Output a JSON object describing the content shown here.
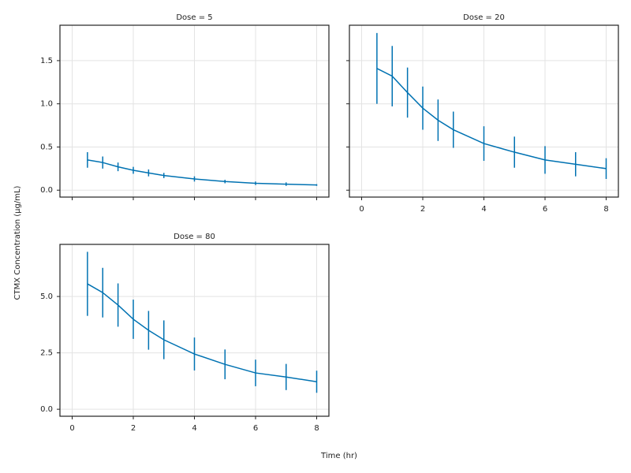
{
  "xlabel": "Time (hr)",
  "ylabel": "CTMX Concentration (μg/mL)",
  "chart_data": [
    {
      "type": "errorline",
      "title": "Dose = 5",
      "x": [
        0.5,
        1,
        1.5,
        2,
        2.5,
        3,
        4,
        5,
        6,
        7,
        8
      ],
      "values": [
        0.35,
        0.32,
        0.27,
        0.23,
        0.2,
        0.17,
        0.13,
        0.1,
        0.08,
        0.07,
        0.06
      ],
      "errors": [
        0.09,
        0.07,
        0.05,
        0.04,
        0.04,
        0.03,
        0.03,
        0.02,
        0.02,
        0.02,
        0.01
      ],
      "color": "#0072b2",
      "xlim": [
        -0.4,
        8.4
      ],
      "ylim": [
        -0.08,
        1.91
      ],
      "xticks": [
        0,
        2,
        4,
        6,
        8
      ],
      "xticklabels": false,
      "yticks": [
        {
          "value": 0,
          "label": "0.0"
        },
        {
          "value": 0.5,
          "label": "0.5"
        },
        {
          "value": 1,
          "label": "1.0"
        },
        {
          "value": 1.5,
          "label": "1.5"
        }
      ],
      "yticklabels": true,
      "grid": true
    },
    {
      "type": "errorline",
      "title": "Dose = 20",
      "x": [
        0.5,
        1,
        1.5,
        2,
        2.5,
        3,
        4,
        5,
        6,
        7,
        8
      ],
      "values": [
        1.41,
        1.32,
        1.13,
        0.95,
        0.81,
        0.7,
        0.54,
        0.44,
        0.35,
        0.3,
        0.25
      ],
      "errors": [
        0.41,
        0.35,
        0.29,
        0.25,
        0.24,
        0.21,
        0.2,
        0.18,
        0.16,
        0.14,
        0.12
      ],
      "color": "#0072b2",
      "xlim": [
        -0.4,
        8.4
      ],
      "ylim": [
        -0.08,
        1.91
      ],
      "xticks": [
        0,
        2,
        4,
        6,
        8
      ],
      "xticklabels": true,
      "yticks": [
        0,
        0.5,
        1,
        1.5
      ],
      "yticklabels": false,
      "grid": true
    },
    {
      "type": "errorline",
      "title": "Dose = 80",
      "x": [
        0.5,
        1,
        1.5,
        2,
        2.5,
        3,
        4,
        5,
        6,
        7,
        8
      ],
      "values": [
        5.56,
        5.17,
        4.62,
        3.99,
        3.5,
        3.08,
        2.45,
        1.99,
        1.61,
        1.43,
        1.22
      ],
      "errors": [
        1.42,
        1.1,
        0.96,
        0.87,
        0.86,
        0.86,
        0.73,
        0.66,
        0.59,
        0.58,
        0.49
      ],
      "color": "#0072b2",
      "xlim": [
        -0.4,
        8.4
      ],
      "ylim": [
        -0.31,
        7.31
      ],
      "xticks": [
        0,
        2,
        4,
        6,
        8
      ],
      "xticklabels": true,
      "yticks": [
        {
          "value": 0,
          "label": "0.0"
        },
        {
          "value": 2.5,
          "label": "2.5"
        },
        {
          "value": 5,
          "label": "5.0"
        }
      ],
      "yticklabels": true,
      "grid": true
    }
  ]
}
